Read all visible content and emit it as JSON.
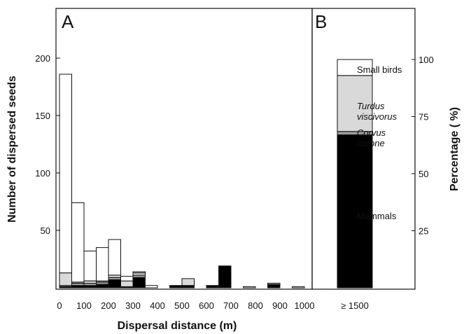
{
  "chart_data": {
    "type": "bar",
    "panels": [
      {
        "label": "A",
        "subtype": "stacked-histogram",
        "xlabel": "Dispersal distance  (m)",
        "ylabel": "Number of dispersed seeds",
        "xlim": [
          0,
          1000
        ],
        "ylim": [
          0,
          200
        ],
        "bin_width": 50,
        "x_ticks": [
          0,
          100,
          200,
          300,
          400,
          500,
          600,
          700,
          800,
          900,
          1000
        ],
        "y_ticks": [
          50,
          100,
          150,
          200
        ],
        "stack_order": [
          "Mammals",
          "Corvus corone",
          "Turdus viscivorus",
          "Small birds"
        ],
        "bins": [
          {
            "x0": 0,
            "Mammals": 1,
            "Corvus corone": 1,
            "Turdus viscivorus": 11,
            "Small birds": 173
          },
          {
            "x0": 50,
            "Mammals": 2,
            "Corvus corone": 2,
            "Turdus viscivorus": 1,
            "Small birds": 69
          },
          {
            "x0": 100,
            "Mammals": 2,
            "Corvus corone": 2,
            "Turdus viscivorus": 2,
            "Small birds": 26
          },
          {
            "x0": 150,
            "Mammals": 3,
            "Corvus corone": 2,
            "Turdus viscivorus": 1,
            "Small birds": 29
          },
          {
            "x0": 200,
            "Mammals": 7,
            "Corvus corone": 2,
            "Turdus viscivorus": 2,
            "Small birds": 31
          },
          {
            "x0": 250,
            "Mammals": 1,
            "Corvus corone": 0,
            "Turdus viscivorus": 5,
            "Small birds": 4
          },
          {
            "x0": 300,
            "Mammals": 9,
            "Corvus corone": 2,
            "Turdus viscivorus": 2,
            "Small birds": 1
          },
          {
            "x0": 350,
            "Mammals": 0,
            "Corvus corone": 0,
            "Turdus viscivorus": 0,
            "Small birds": 2
          },
          {
            "x0": 450,
            "Mammals": 2,
            "Corvus corone": 0,
            "Turdus viscivorus": 0,
            "Small birds": 0
          },
          {
            "x0": 500,
            "Mammals": 2,
            "Corvus corone": 0,
            "Turdus viscivorus": 6,
            "Small birds": 0
          },
          {
            "x0": 600,
            "Mammals": 2,
            "Corvus corone": 0,
            "Turdus viscivorus": 0,
            "Small birds": 0
          },
          {
            "x0": 650,
            "Mammals": 19,
            "Corvus corone": 0,
            "Turdus viscivorus": 0,
            "Small birds": 0
          },
          {
            "x0": 750,
            "Mammals": 0,
            "Corvus corone": 0,
            "Turdus viscivorus": 0,
            "Small birds": 1
          },
          {
            "x0": 850,
            "Mammals": 3,
            "Corvus corone": 0,
            "Turdus viscivorus": 0,
            "Small birds": 1
          },
          {
            "x0": 950,
            "Mammals": 0,
            "Corvus corone": 0,
            "Turdus viscivorus": 0,
            "Small birds": 1
          }
        ]
      },
      {
        "label": "B",
        "subtype": "stacked-percentage",
        "category": "≥ 1500",
        "ylabel": "Percentage ( %)",
        "ylim": [
          0,
          100
        ],
        "y_ticks": [
          25,
          50,
          75,
          100
        ],
        "segments": [
          {
            "name": "Mammals",
            "name_lines": [
              "Mammals"
            ],
            "percent": 67,
            "color": "#000000",
            "italic": false
          },
          {
            "name": "Corvus corone",
            "name_lines": [
              "Corvus",
              "corone"
            ],
            "percent": 1.5,
            "color": "#9a9a9a",
            "italic": true
          },
          {
            "name": "Turdus viscivorus",
            "name_lines": [
              "Turdus",
              "viscivorus"
            ],
            "percent": 24.5,
            "color": "#d9d9d9",
            "italic": true
          },
          {
            "name": "Small birds",
            "name_lines": [
              "Small birds"
            ],
            "percent": 7,
            "color": "#ffffff",
            "italic": false
          }
        ]
      }
    ],
    "grid": false,
    "colors": {
      "Mammals": "#000000",
      "Corvus corone": "#9a9a9a",
      "Turdus viscivorus": "#d9d9d9",
      "Small birds": "#ffffff"
    }
  }
}
